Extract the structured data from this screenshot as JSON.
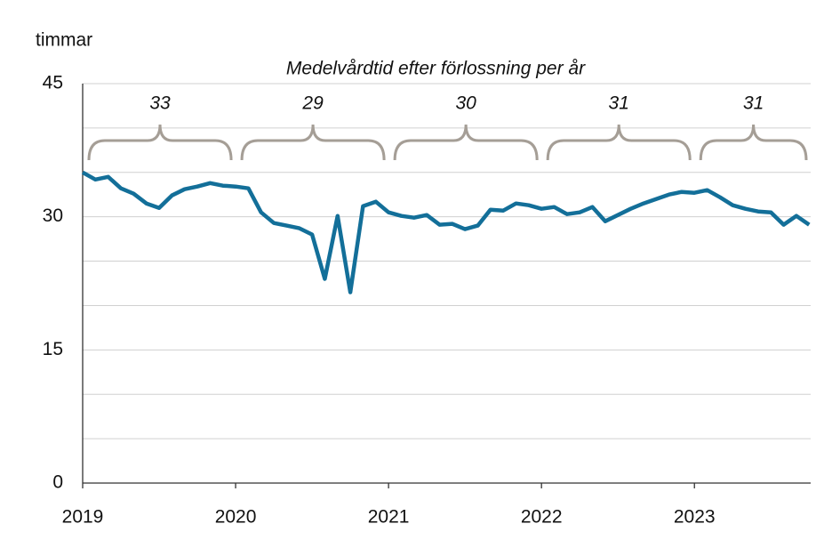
{
  "chart_data": {
    "type": "line",
    "title": "Medelvårdtid efter förlossning per år",
    "y_label": "timmar",
    "x": [
      2019,
      2019.0833,
      2019.1667,
      2019.25,
      2019.3333,
      2019.4167,
      2019.5,
      2019.5833,
      2019.6667,
      2019.75,
      2019.8333,
      2019.9167,
      2020,
      2020.0833,
      2020.1667,
      2020.25,
      2020.3333,
      2020.4167,
      2020.5,
      2020.5833,
      2020.6667,
      2020.75,
      2020.8333,
      2020.9167,
      2021,
      2021.0833,
      2021.1667,
      2021.25,
      2021.3333,
      2021.4167,
      2021.5,
      2021.5833,
      2021.6667,
      2021.75,
      2021.8333,
      2021.9167,
      2022,
      2022.0833,
      2022.1667,
      2022.25,
      2022.3333,
      2022.4167,
      2022.5,
      2022.5833,
      2022.6667,
      2022.75,
      2022.8333,
      2022.9167,
      2023,
      2023.0833,
      2023.1667,
      2023.25,
      2023.3333,
      2023.4167,
      2023.5,
      2023.5833,
      2023.6667,
      2023.75
    ],
    "series": [
      {
        "color": "#136f99",
        "values": [
          35.0,
          34.2,
          34.5,
          33.2,
          32.6,
          31.5,
          31.0,
          32.4,
          33.1,
          33.4,
          33.8,
          33.5,
          33.4,
          33.2,
          30.5,
          29.3,
          29.0,
          28.7,
          28.0,
          23.0,
          30.1,
          21.5,
          31.2,
          31.7,
          30.5,
          30.1,
          29.9,
          30.2,
          29.1,
          29.2,
          28.6,
          29.0,
          30.8,
          30.7,
          31.5,
          31.3,
          30.9,
          31.1,
          30.3,
          30.5,
          31.1,
          29.5,
          30.2,
          30.9,
          31.5,
          32.0,
          32.5,
          32.8,
          32.7,
          33.0,
          32.2,
          31.3,
          30.9,
          30.6,
          30.5,
          29.1,
          30.1,
          29.1
        ]
      }
    ],
    "xlim": [
      2019,
      2023.76
    ],
    "xticks": [
      2019,
      2020,
      2021,
      2022,
      2023
    ],
    "ylim": [
      0,
      45
    ],
    "yticks": [
      0,
      15,
      30,
      45
    ],
    "minor_yticks": [
      5,
      10,
      20,
      25,
      35,
      40
    ],
    "grid": true,
    "averages": [
      {
        "value": 33,
        "from": 2019,
        "to": 2020
      },
      {
        "value": 29,
        "from": 2020,
        "to": 2021
      },
      {
        "value": 30,
        "from": 2021,
        "to": 2022
      },
      {
        "value": 31,
        "from": 2022,
        "to": 2023
      },
      {
        "value": 31,
        "from": 2023,
        "to": 2023.76
      }
    ],
    "brace_color": "#a59e96"
  }
}
